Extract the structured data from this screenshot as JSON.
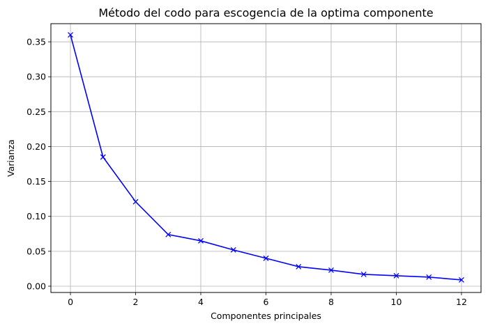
{
  "chart_data": {
    "type": "line",
    "title": "Método del codo para escogencia de la optima componente",
    "xlabel": "Componentes principales",
    "ylabel": "Varianza",
    "xlim": [
      -0.6,
      12.6
    ],
    "ylim": [
      -0.009,
      0.376
    ],
    "xticks": [
      0,
      2,
      4,
      6,
      8,
      10,
      12
    ],
    "xtick_labels": [
      "0",
      "2",
      "4",
      "6",
      "8",
      "10",
      "12"
    ],
    "yticks": [
      0.0,
      0.05,
      0.1,
      0.15,
      0.2,
      0.25,
      0.3,
      0.35
    ],
    "ytick_labels": [
      "0.00",
      "0.05",
      "0.10",
      "0.15",
      "0.20",
      "0.25",
      "0.30",
      "0.35"
    ],
    "grid": true,
    "series": [
      {
        "color": "#0000ff",
        "marker": "x",
        "x": [
          0,
          1,
          2,
          3,
          4,
          5,
          6,
          7,
          8,
          9,
          10,
          11,
          12
        ],
        "y": [
          0.36,
          0.185,
          0.121,
          0.074,
          0.065,
          0.052,
          0.04,
          0.028,
          0.023,
          0.017,
          0.015,
          0.013,
          0.009
        ]
      }
    ]
  }
}
